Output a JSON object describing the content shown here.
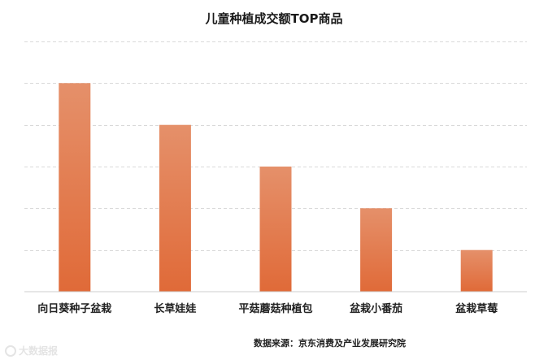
{
  "chart_data": {
    "type": "bar",
    "title": "儿童种植成交额TOP商品",
    "categories": [
      "向日葵种子盆栽",
      "长草娃娃",
      "平菇蘑菇种植包",
      "盆栽小番茄",
      "盆栽草莓"
    ],
    "values": [
      5,
      4,
      3,
      2,
      1
    ],
    "ylim": [
      0,
      6
    ],
    "grid": true,
    "bar_color_top": "#e5906a",
    "bar_color_bottom": "#e06a38"
  },
  "source": "数据来源：京东消费及产业发展研究院",
  "watermark": "大数据报"
}
